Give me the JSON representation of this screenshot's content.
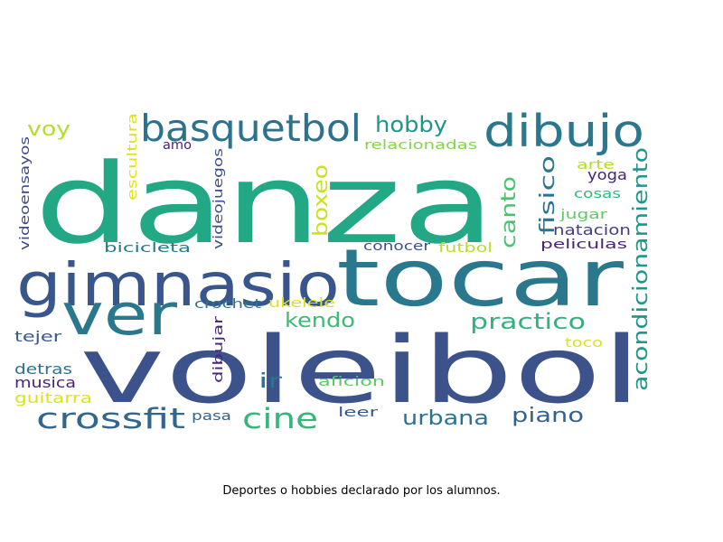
{
  "caption": "Deportes o hobbies declarado por los alumnos.",
  "palette": {
    "dark_purple": "#482475",
    "purple": "#433e85",
    "indigo": "#38598c",
    "slate": "#33638d",
    "blue_teal": "#2c728e",
    "teal": "#21918c",
    "green_teal": "#1fa187",
    "sea_green": "#28ae80",
    "green": "#3bbb75",
    "light_green": "#5ec962",
    "lime": "#85d54a",
    "yellow_green": "#b5de2b",
    "yellow": "#dde318"
  },
  "words": [
    {
      "text": "danza",
      "color": "#22a884"
    },
    {
      "text": "voleibol",
      "color": "#3b528b"
    },
    {
      "text": "tocar",
      "color": "#2a788e"
    },
    {
      "text": "gimnasio",
      "color": "#39568c"
    },
    {
      "text": "ver",
      "color": "#2a788e"
    },
    {
      "text": "dibujo",
      "color": "#2a788e"
    },
    {
      "text": "basquetbol",
      "color": "#2c728e"
    },
    {
      "text": "crossfit",
      "color": "#31668e"
    },
    {
      "text": "cine",
      "color": "#35b779"
    },
    {
      "text": "acondicionamiento",
      "color": "#1f988b"
    },
    {
      "text": "hobby",
      "color": "#1f958b"
    },
    {
      "text": "voy",
      "color": "#b5de2b"
    },
    {
      "text": "practico",
      "color": "#2fb47c"
    },
    {
      "text": "kendo",
      "color": "#3bbb75"
    },
    {
      "text": "urbana",
      "color": "#2c728e"
    },
    {
      "text": "piano",
      "color": "#33638d"
    },
    {
      "text": "fisico",
      "color": "#2a768e"
    },
    {
      "text": "canto",
      "color": "#4ac16d"
    },
    {
      "text": "boxeo",
      "color": "#cae11f"
    },
    {
      "text": "ir",
      "color": "#2c728e"
    },
    {
      "text": "relacionadas",
      "color": "#84d44b"
    },
    {
      "text": "videoensayos",
      "color": "#3e4a89"
    },
    {
      "text": "escultura",
      "color": "#dde318"
    },
    {
      "text": "amo",
      "color": "#482475"
    },
    {
      "text": "videojuegos",
      "color": "#3d4e8a"
    },
    {
      "text": "bicicleta",
      "color": "#2a788e"
    },
    {
      "text": "crochet",
      "color": "#2c728e"
    },
    {
      "text": "ukelele",
      "color": "#dde318"
    },
    {
      "text": "dibujar",
      "color": "#482475"
    },
    {
      "text": "conocer",
      "color": "#3b528b"
    },
    {
      "text": "futbol",
      "color": "#b5de2b"
    },
    {
      "text": "arte",
      "color": "#b5de2b"
    },
    {
      "text": "yoga",
      "color": "#482475"
    },
    {
      "text": "cosas",
      "color": "#35b779"
    },
    {
      "text": "jugar",
      "color": "#5ec962"
    },
    {
      "text": "natacion",
      "color": "#433e85"
    },
    {
      "text": "peliculas",
      "color": "#482475"
    },
    {
      "text": "toco",
      "color": "#dde318"
    },
    {
      "text": "tejer",
      "color": "#38598c"
    },
    {
      "text": "detras",
      "color": "#2c728e"
    },
    {
      "text": "musica",
      "color": "#482475"
    },
    {
      "text": "guitarra",
      "color": "#dde318"
    },
    {
      "text": "aficion",
      "color": "#5ec962"
    },
    {
      "text": "pasa",
      "color": "#33638d"
    },
    {
      "text": "leer",
      "color": "#38598c"
    }
  ]
}
